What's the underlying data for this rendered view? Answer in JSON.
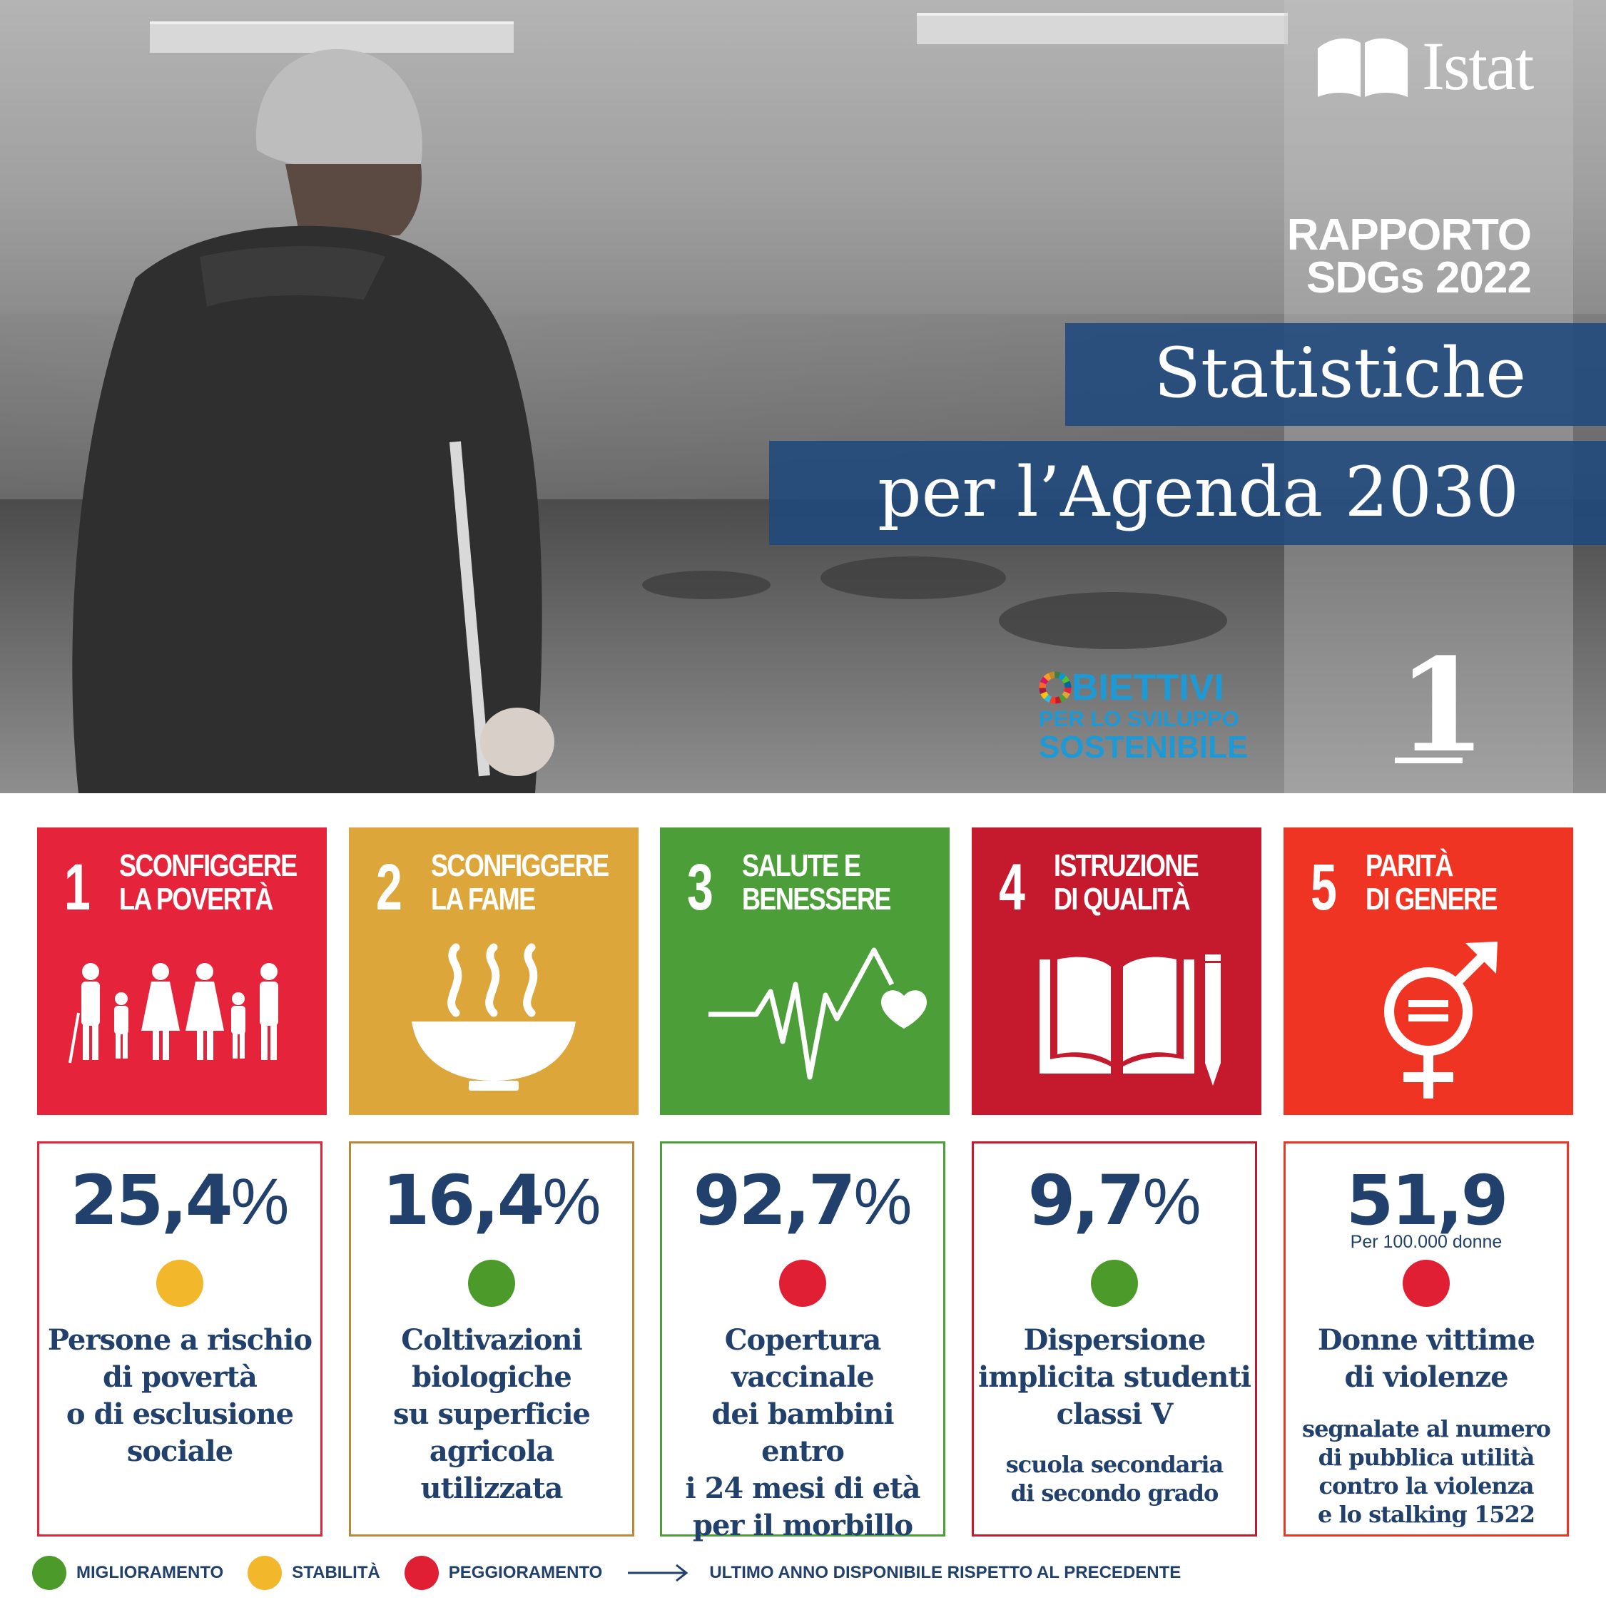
{
  "brand": {
    "name": "Istat"
  },
  "hero": {
    "report_line1": "RAPPORTO",
    "report_line2": "SDGs 2022",
    "title_line1": "Statistiche",
    "title_line2": "per l’Agenda 2030",
    "obiettivi_line1": "BIETTIVI",
    "obiettivi_line2": "PER LO SVILUPPO",
    "obiettivi_line3": "SOSTENIBILE",
    "goal_number": "1"
  },
  "goals": [
    {
      "number": "1",
      "line1": "SCONFIGGERE",
      "line2": "LA POVERTÀ",
      "color": "#e5243b",
      "icon": "family-icon"
    },
    {
      "number": "2",
      "line1": "SCONFIGGERE",
      "line2": "LA FAME",
      "color": "#dda63a",
      "icon": "bowl-icon"
    },
    {
      "number": "3",
      "line1": "SALUTE E",
      "line2": "BENESSERE",
      "color": "#4c9f38",
      "icon": "heartbeat-icon"
    },
    {
      "number": "4",
      "line1": "ISTRUZIONE",
      "line2": "DI QUALITÀ",
      "color": "#c5192d",
      "icon": "book-pencil-icon"
    },
    {
      "number": "5",
      "line1": "PARITÀ",
      "line2": "DI GENERE",
      "color": "#ff3a21",
      "icon": "gender-equality-icon"
    }
  ],
  "stats": [
    {
      "value": "25,4",
      "suffix": "%",
      "unit": "",
      "trend": "stabilità",
      "trend_color": "#f3b72b",
      "desc": [
        "Persone a rischio",
        "di povertà",
        "o di esclusione",
        "sociale"
      ],
      "sub": []
    },
    {
      "value": "16,4",
      "suffix": "%",
      "unit": "",
      "trend": "miglioramento",
      "trend_color": "#4c9a2a",
      "desc": [
        "Coltivazioni",
        "biologiche",
        "su superficie",
        "agricola utilizzata"
      ],
      "sub": []
    },
    {
      "value": "92,7",
      "suffix": "%",
      "unit": "",
      "trend": "peggioramento",
      "trend_color": "#e01f35",
      "desc": [
        "Copertura",
        "vaccinale",
        "dei bambini entro",
        "i 24 mesi di età",
        "per il morbillo"
      ],
      "sub": []
    },
    {
      "value": "9,7",
      "suffix": "%",
      "unit": "",
      "trend": "miglioramento",
      "trend_color": "#4c9a2a",
      "desc": [
        "Dispersione",
        "implicita studenti",
        "classi V"
      ],
      "sub": [
        "scuola secondaria",
        "di secondo grado"
      ]
    },
    {
      "value": "51,9",
      "suffix": "",
      "unit": "Per 100.000 donne",
      "trend": "peggioramento",
      "trend_color": "#e01f35",
      "desc": [
        "Donne vittime",
        "di violenze"
      ],
      "sub": [
        "segnalate al numero",
        "di pubblica utilità",
        "contro la violenza",
        "e lo stalking 1522"
      ]
    }
  ],
  "legend": {
    "improvement": "MIGLIORAMENTO",
    "stability": "STABILITÀ",
    "worsening": "PEGGIORAMENTO",
    "note": "ULTIMO ANNO DISPONIBILE RISPETTO AL PRECEDENTE",
    "colors": {
      "improvement": "#4c9a2a",
      "stability": "#f3b72b",
      "worsening": "#e01f35"
    }
  }
}
